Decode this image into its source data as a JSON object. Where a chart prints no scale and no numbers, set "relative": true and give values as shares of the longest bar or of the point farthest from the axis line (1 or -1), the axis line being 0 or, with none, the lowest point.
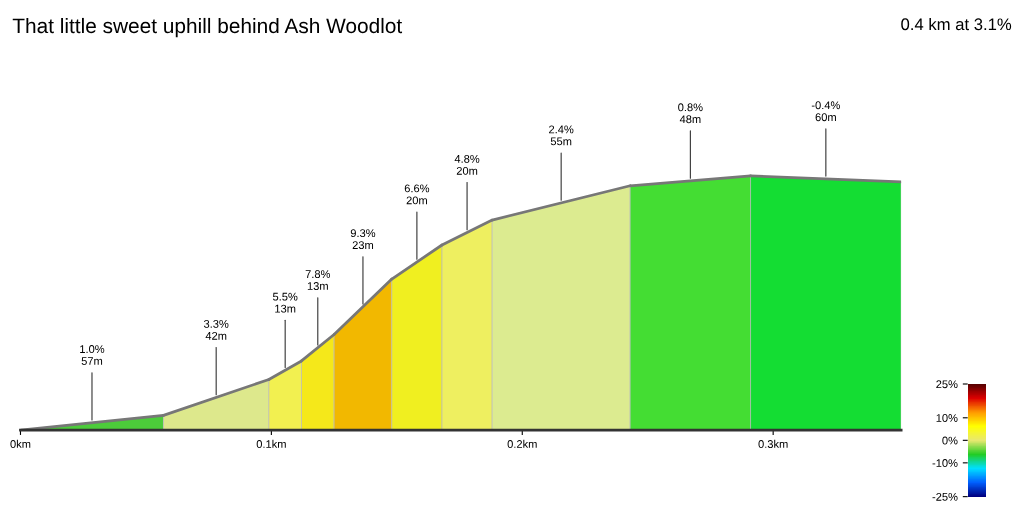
{
  "chart_data": {
    "type": "area",
    "title": "That little sweet uphill behind Ash Woodlot",
    "subtitle": "0.4 km at 3.1%",
    "relative": true,
    "series": [
      {
        "color": "#4ccc3a",
        "x": [
          0,
          0.057
        ],
        "values": [
          0,
          0.058
        ]
      },
      {
        "color": "#dde88c",
        "x": [
          0.057,
          0.099
        ],
        "values": [
          0.058,
          0.199
        ]
      },
      {
        "color": "#f2f050",
        "x": [
          0.099,
          0.112
        ],
        "values": [
          0.199,
          0.272
        ]
      },
      {
        "color": "#f5e81a",
        "x": [
          0.112,
          0.125
        ],
        "values": [
          0.272,
          0.376
        ]
      },
      {
        "color": "#f2b800",
        "x": [
          0.125,
          0.148
        ],
        "values": [
          0.376,
          0.594
        ]
      },
      {
        "color": "#f0ef20",
        "x": [
          0.148,
          0.168
        ],
        "values": [
          0.594,
          0.728
        ]
      },
      {
        "color": "#eeef60",
        "x": [
          0.168,
          0.188
        ],
        "values": [
          0.728,
          0.826
        ]
      },
      {
        "color": "#dceb90",
        "x": [
          0.188,
          0.243
        ],
        "values": [
          0.826,
          0.961
        ]
      },
      {
        "color": "#44dd33",
        "x": [
          0.243,
          0.291
        ],
        "values": [
          0.961,
          1.0
        ]
      },
      {
        "color": "#14dd33",
        "x": [
          0.291,
          0.351
        ],
        "values": [
          1.0,
          0.976
        ]
      }
    ],
    "annotations": [
      {
        "text": "1.0%\n57m",
        "x": 0.0285,
        "y": 0.029
      },
      {
        "text": "3.3%\n42m",
        "x": 0.078,
        "y": 0.128
      },
      {
        "text": "5.5%\n13m",
        "x": 0.1055,
        "y": 0.235
      },
      {
        "text": "7.8%\n13m",
        "x": 0.1185,
        "y": 0.324
      },
      {
        "text": "9.3%\n23m",
        "x": 0.1365,
        "y": 0.485
      },
      {
        "text": "6.6%\n20m",
        "x": 0.158,
        "y": 0.661
      },
      {
        "text": "4.8%\n20m",
        "x": 0.178,
        "y": 0.777
      },
      {
        "text": "2.4%\n55m",
        "x": 0.2155,
        "y": 0.893
      },
      {
        "text": "0.8%\n48m",
        "x": 0.267,
        "y": 0.98
      },
      {
        "text": "-0.4%\n60m",
        "x": 0.321,
        "y": 0.988
      }
    ],
    "xlim": [
      0,
      0.351
    ],
    "xticks": [
      {
        "value": 0,
        "label": "0km"
      },
      {
        "value": 0.1,
        "label": "0.1km"
      },
      {
        "value": 0.2,
        "label": "0.2km"
      },
      {
        "value": 0.3,
        "label": "0.3km"
      }
    ],
    "clim": [
      -25,
      25
    ],
    "cticks": [
      {
        "value": 25,
        "label": "25%"
      },
      {
        "value": 10,
        "label": "10%"
      },
      {
        "value": 0,
        "label": "0%"
      },
      {
        "value": -10,
        "label": "-10%"
      },
      {
        "value": -25,
        "label": "-25%"
      }
    ]
  }
}
